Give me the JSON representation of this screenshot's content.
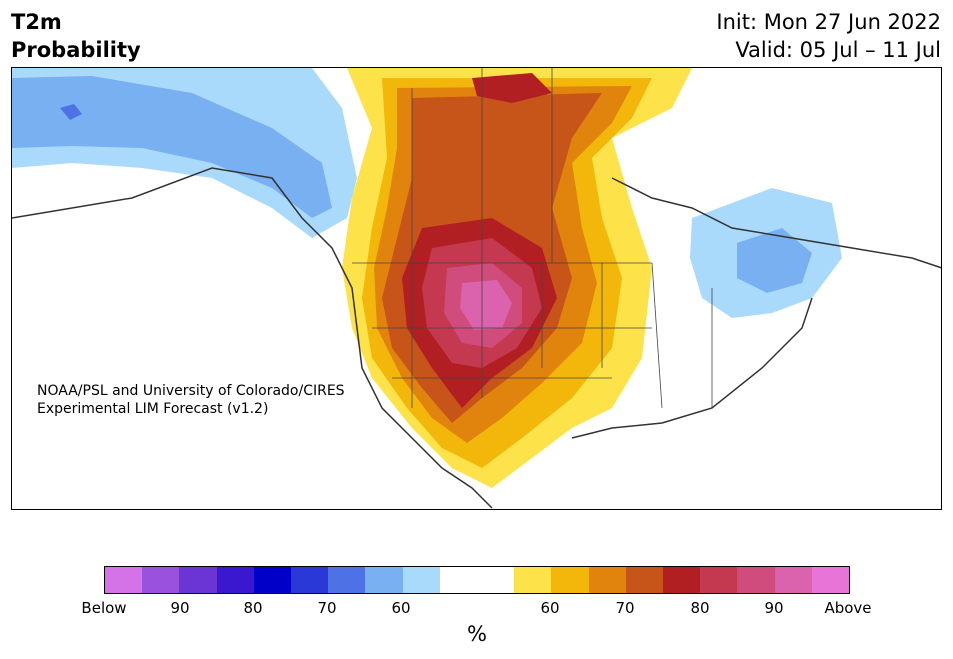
{
  "header": {
    "title_line1": "T2m",
    "title_line2": "Probability",
    "init": "Init: Mon 27 Jun 2022",
    "valid": "Valid: 05 Jul – 11 Jul"
  },
  "map": {
    "credit_line1": "NOAA/PSL and University of Colorado/CIRES",
    "credit_line2": "Experimental LIM Forecast (v1.2)"
  },
  "colorbar": {
    "unit": "%",
    "tick_labels": [
      "Below",
      "90",
      "80",
      "70",
      "60",
      "60",
      "70",
      "80",
      "90",
      "Above"
    ],
    "colors": [
      "#d472e8",
      "#9a52de",
      "#6b35d6",
      "#3a18d0",
      "#0000c8",
      "#2938d6",
      "#4e72e6",
      "#78b0f2",
      "#aadafb",
      "#ffffff",
      "#ffffff",
      "#fde24a",
      "#f2b70a",
      "#e0840e",
      "#c75419",
      "#b21f23",
      "#c43850",
      "#d04c7c",
      "#db62ad",
      "#e874d8"
    ],
    "below_color": "#d472e8",
    "above_color": "#e874d8"
  },
  "legend_colors": {
    "below_60": "#aadafb",
    "below_70": "#78b0f2",
    "below_80": "#4e72e6",
    "above_60": "#fde24a",
    "above_70": "#f2b70a",
    "above_80": "#e0840e",
    "above_90": "#c75419",
    "above_max": "#db62ad"
  }
}
